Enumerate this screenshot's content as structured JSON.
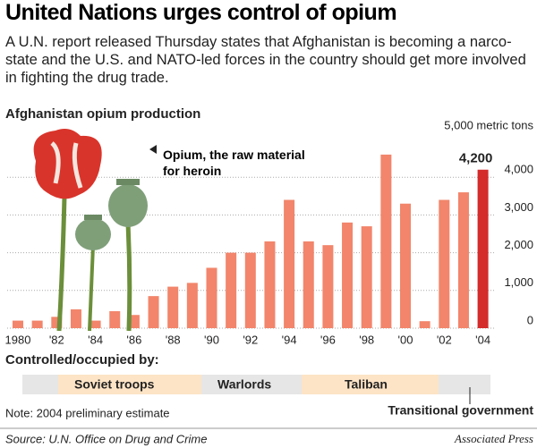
{
  "chart_data": {
    "type": "bar",
    "headline": "United Nations urges control of opium",
    "subtitle": "A U.N. report released Thursday states that Afghanistan is becoming a narco-state and the U.S. and NATO-led forces in the country should get more involved in fighting the drug trade.",
    "title": "Afghanistan opium production",
    "y_unit_label": "5,000 metric tons",
    "annotation": "Opium, the raw material for heroin",
    "categories": [
      "1980",
      null,
      "'82",
      null,
      "'84",
      null,
      "'86",
      null,
      "'88",
      null,
      "'90",
      null,
      "'92",
      null,
      "'94",
      null,
      "'96",
      null,
      "'98",
      null,
      "'00",
      null,
      "'02",
      null,
      "'04"
    ],
    "values": [
      200,
      200,
      300,
      500,
      200,
      450,
      350,
      850,
      1100,
      1200,
      1600,
      2000,
      2000,
      2300,
      3400,
      2300,
      2200,
      2800,
      2700,
      4600,
      3300,
      185,
      3400,
      3600,
      4200
    ],
    "value_labels": [
      null,
      null,
      null,
      null,
      null,
      null,
      null,
      null,
      null,
      null,
      null,
      null,
      null,
      null,
      null,
      null,
      null,
      null,
      null,
      null,
      null,
      null,
      null,
      null,
      "4,200"
    ],
    "color": "#f2856b",
    "highlight_color": "#d42b2b",
    "highlight_index": 24,
    "ylim": [
      0,
      5000
    ],
    "yticks": [
      0,
      {
        "value": 1000,
        "label": "1,000"
      },
      {
        "value": 2000,
        "label": "2,000"
      },
      {
        "value": 3000,
        "label": "3,000"
      },
      {
        "value": 4000,
        "label": "4,000"
      }
    ],
    "grid": true,
    "period_label": "Controlled/occupied by:",
    "periods": [
      "Soviet troops",
      "Warlords",
      "Taliban",
      "Transitional government"
    ],
    "note": "Note: 2004 preliminary estimate",
    "source": "Source: U.N. Office on Drug and Crime",
    "credit": "Associated Press"
  }
}
